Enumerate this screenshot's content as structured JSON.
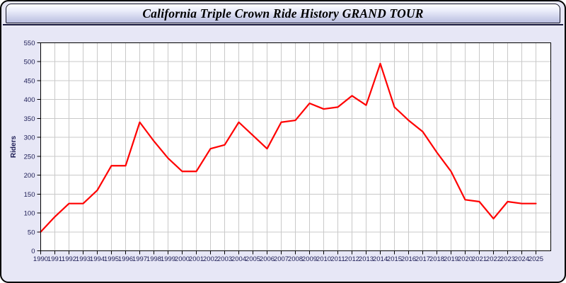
{
  "page": {
    "title": "California Triple Crown Ride History GRAND TOUR"
  },
  "chart_data": {
    "type": "line",
    "title": "California Triple Crown Ride History GRAND TOUR",
    "xlabel": "",
    "ylabel": "Riders",
    "grid": true,
    "legend": "none",
    "ylim": [
      0,
      550
    ],
    "yticks": [
      0,
      50,
      100,
      150,
      200,
      250,
      300,
      350,
      400,
      450,
      500,
      550
    ],
    "x": [
      1990,
      1991,
      1992,
      1993,
      1994,
      1995,
      1996,
      1997,
      1998,
      1999,
      2000,
      2001,
      2002,
      2003,
      2004,
      2005,
      2006,
      2007,
      2008,
      2009,
      2010,
      2011,
      2012,
      2013,
      2014,
      2015,
      2016,
      2017,
      2018,
      2019,
      2020,
      2021,
      2022,
      2023,
      2024,
      2025
    ],
    "series": [
      {
        "name": "Riders",
        "values": [
          50,
          90,
          125,
          125,
          160,
          225,
          225,
          340,
          290,
          245,
          210,
          210,
          270,
          280,
          340,
          305,
          270,
          340,
          345,
          390,
          375,
          380,
          410,
          385,
          495,
          380,
          345,
          315,
          260,
          210,
          135,
          130,
          85,
          130,
          125,
          125
        ]
      }
    ],
    "colors": {
      "line": "#ff0000",
      "plot_background": "#ffffff",
      "page_background": "#e7e7f6",
      "gridline": "#c9c9c9",
      "axis": "#000000",
      "tick_label": "#1c1c55"
    }
  }
}
